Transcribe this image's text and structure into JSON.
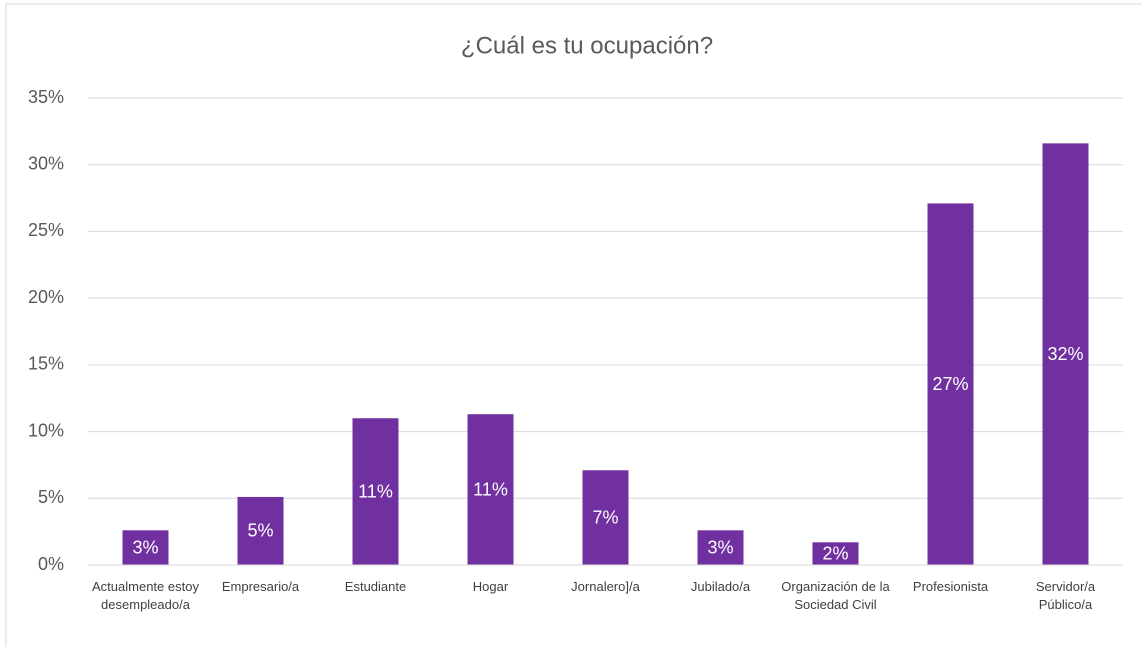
{
  "chart_data": {
    "type": "bar",
    "title": "¿Cuál es tu ocupación?",
    "categories": [
      "Actualmente estoy desempleado/a",
      "Empresario/a",
      "Estudiante",
      "Hogar",
      "Jornalero]/a",
      "Jubilado/a",
      "Organización de la Sociedad Civil",
      "Profesionista",
      "Servidor/a Público/a"
    ],
    "values": [
      2.6,
      5.1,
      11.0,
      11.3,
      7.1,
      2.6,
      1.7,
      27.1,
      31.6
    ],
    "value_labels": [
      "3%",
      "5%",
      "11%",
      "11%",
      "7%",
      "3%",
      "2%",
      "27%",
      "32%"
    ],
    "color": "#7030a0",
    "ylim": [
      0,
      35
    ],
    "yticks": [
      {
        "value": 0,
        "label": "0%"
      },
      {
        "value": 5,
        "label": "5%"
      },
      {
        "value": 10,
        "label": "10%"
      },
      {
        "value": 15,
        "label": "15%"
      },
      {
        "value": 20,
        "label": "20%"
      },
      {
        "value": 25,
        "label": "25%"
      },
      {
        "value": 30,
        "label": "30%"
      },
      {
        "value": 35,
        "label": "35%"
      }
    ],
    "grid": true
  }
}
